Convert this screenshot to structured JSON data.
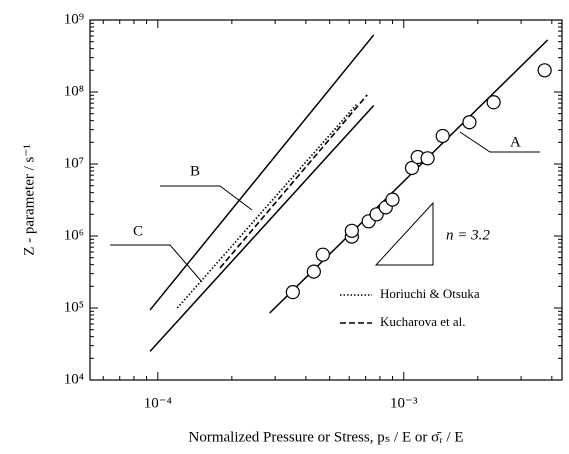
{
  "chart_data": {
    "type": "scatter",
    "xlabel": "Normalized Pressure or Stress,  pₛ / E or σ̄ᵣ / E",
    "ylabel": "Z - parameter / s⁻¹",
    "xscale": "log",
    "yscale": "log",
    "minor_ticks": true,
    "xlim": [
      5.3e-05,
      0.0044
    ],
    "ylim": [
      10000,
      1000000000
    ],
    "xticks": [
      {
        "value": 0.0001,
        "label": "10⁻⁴"
      },
      {
        "value": 0.001,
        "label": "10⁻³"
      }
    ],
    "yticks": [
      {
        "value": 10000,
        "label": "10⁴"
      },
      {
        "value": 100000,
        "label": "10⁵"
      },
      {
        "value": 1000000,
        "label": "10⁶"
      },
      {
        "value": 10000000,
        "label": "10⁷"
      },
      {
        "value": 100000000,
        "label": "10⁸"
      },
      {
        "value": 1000000000,
        "label": "10⁹"
      }
    ],
    "points": {
      "x": [
        0.000354,
        0.000431,
        0.000469,
        0.000615,
        0.000615,
        0.00072,
        0.000776,
        0.000845,
        0.0009,
        0.00108,
        0.00114,
        0.00125,
        0.00144,
        0.00185,
        0.00232,
        0.00374
      ],
      "y": [
        166000.0,
        320000.0,
        550000.0,
        980000.0,
        1180000.0,
        1600000.0,
        2000000.0,
        2500000.0,
        3200000.0,
        8800000.0,
        12500000.0,
        12000000.0,
        24500000.0,
        38000000.0,
        72000000.0,
        200000000.0
      ]
    },
    "lines": [
      {
        "label": "A",
        "x": [
          0.000285,
          0.00385
        ],
        "y": [
          85000.0,
          530000000.0
        ]
      },
      {
        "label": "B",
        "x": [
          9.3e-05,
          0.000755
        ],
        "y": [
          94000.0,
          620000000.0
        ]
      },
      {
        "label": "C",
        "x": [
          9.3e-05,
          0.000755
        ],
        "y": [
          25000.0,
          65000000.0
        ]
      }
    ],
    "series": [
      {
        "name": "Horiuchi & Otsuka",
        "style": "dotted",
        "color": "#000",
        "x": [
          0.00012,
          0.00065
        ],
        "y": [
          100000.0,
          70000000.0
        ]
      },
      {
        "name": "Kucharova et al.",
        "style": "dashed",
        "color": "#000",
        "x": [
          0.000179,
          0.00071
        ],
        "y": [
          360000.0,
          91000000.0
        ]
      }
    ],
    "annotation": "n = 3.2"
  }
}
